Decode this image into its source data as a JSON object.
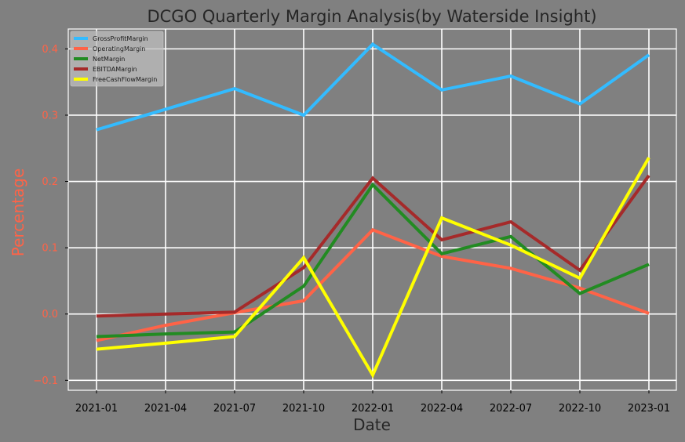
{
  "chart_data": {
    "type": "line",
    "title": "DCGO Quarterly Margin Analysis(by Waterside Insight)",
    "xlabel": "Date",
    "ylabel": "Percentage",
    "x": [
      "2021-01",
      "2021-04",
      "2021-07",
      "2021-10",
      "2022-01",
      "2022-04",
      "2022-07",
      "2022-10",
      "2023-01"
    ],
    "x_ticks": [
      "2021-01",
      "2021-04",
      "2021-07",
      "2021-10",
      "2022-01",
      "2022-04",
      "2022-07",
      "2022-10",
      "2023-01"
    ],
    "ylim": [
      -0.115,
      0.43
    ],
    "y_ticks": [
      -0.1,
      0.0,
      0.1,
      0.2,
      0.3,
      0.4
    ],
    "y_tick_labels": [
      "−0.1",
      "0.0",
      "0.1",
      "0.2",
      "0.3",
      "0.4"
    ],
    "grid": true,
    "legend_position": "top-left",
    "colors": {
      "background": "#808080",
      "grid": "#ffffff",
      "title": "#262626",
      "ylabel": "#ff6347",
      "yticks": "#ff6347",
      "xticks": "#000000"
    },
    "series": [
      {
        "name": "GrossProfitMargin",
        "color": "#33bbff",
        "values": [
          0.278,
          0.309,
          0.34,
          0.3,
          0.407,
          0.338,
          0.359,
          0.317,
          0.391
        ]
      },
      {
        "name": "OperatingMargin",
        "color": "#ff6347",
        "values": [
          -0.04,
          -0.017,
          0.002,
          0.02,
          0.127,
          0.087,
          0.069,
          0.039,
          0.001
        ]
      },
      {
        "name": "NetMargin",
        "color": "#228b22",
        "values": [
          -0.034,
          -0.03,
          -0.027,
          0.042,
          0.195,
          0.091,
          0.117,
          0.031,
          0.075
        ]
      },
      {
        "name": "EBITDAMargin",
        "color": "#a52a2a",
        "values": [
          -0.003,
          0.0,
          0.003,
          0.07,
          0.205,
          0.112,
          0.139,
          0.066,
          0.209
        ]
      },
      {
        "name": "FreeCashFlowMargin",
        "color": "#ffff00",
        "values": [
          -0.053,
          -0.044,
          -0.034,
          0.085,
          -0.092,
          0.145,
          0.104,
          0.054,
          0.236
        ]
      }
    ]
  }
}
